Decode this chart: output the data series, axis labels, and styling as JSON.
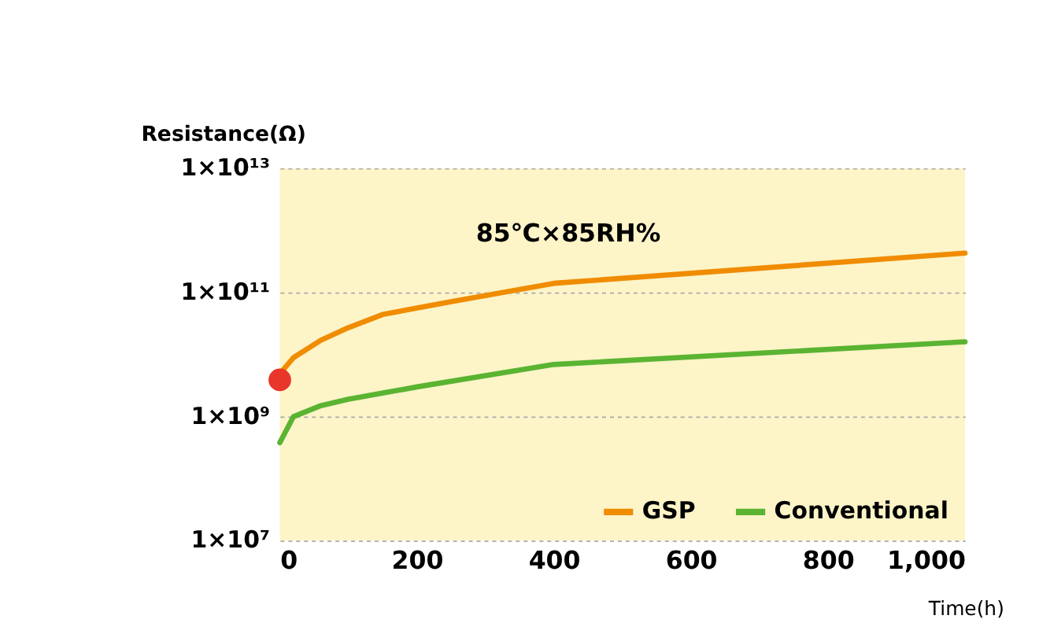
{
  "chart_data": {
    "type": "line",
    "xlabel": "Time(h)",
    "ylabel": "Resistance(Ω)",
    "annotations": [
      "85℃×85RH%"
    ],
    "log": "y",
    "xlim": [
      0,
      1000
    ],
    "xticks": [
      {
        "value": 0,
        "label": "0"
      },
      {
        "value": 200,
        "label": "200"
      },
      {
        "value": 400,
        "label": "400"
      },
      {
        "value": 600,
        "label": "600"
      },
      {
        "value": 800,
        "label": "800"
      },
      {
        "value": 1000,
        "label": "1,000"
      }
    ],
    "ylim": [
      10000000.0,
      10000000000000.0
    ],
    "yticks": [
      {
        "value": 10000000.0,
        "label": "1×10⁷"
      },
      {
        "value": 1000000000.0,
        "label": "1×10⁹"
      },
      {
        "value": 100000000000.0,
        "label": "1×10¹¹"
      },
      {
        "value": 10000000000000.0,
        "label": "1×10¹³"
      }
    ],
    "grid": "y",
    "legend": "bottom right",
    "series": [
      {
        "name": "GSP",
        "color": "#f08c00",
        "x": [
          0,
          20,
          60,
          100,
          150,
          250,
          400,
          1000
        ],
        "values": [
          4900000000.0,
          8900000000.0,
          17000000000.0,
          27000000000.0,
          44000000000.0,
          71000000000.0,
          140000000000.0,
          430000000000.0
        ]
      },
      {
        "name": "Conventional",
        "color": "#5ab432",
        "x": [
          0,
          20,
          60,
          100,
          200,
          400,
          1000
        ],
        "values": [
          380000000.0,
          1000000000.0,
          1500000000.0,
          1900000000.0,
          3000000000.0,
          6900000000.0,
          16000000000.0
        ]
      },
      {
        "type": "scatter",
        "color": "#e8362a",
        "marker": "circle",
        "x": [
          0
        ],
        "values": [
          3900000000.0
        ]
      }
    ]
  }
}
